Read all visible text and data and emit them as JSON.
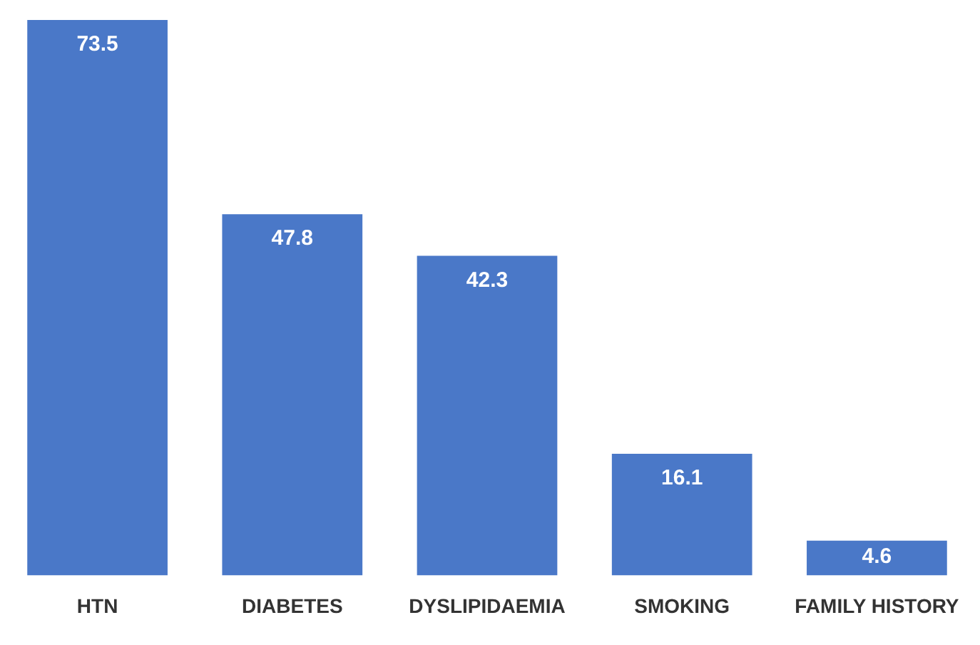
{
  "chart_data": {
    "type": "bar",
    "categories": [
      "HTN",
      "DIABETES",
      "DYSLIPIDAEMIA",
      "SMOKING",
      "FAMILY HISTORY"
    ],
    "values": [
      73.5,
      47.8,
      42.3,
      16.1,
      4.6
    ],
    "color": "#4a78c8",
    "data_labels": true,
    "grid": false,
    "legend": false
  }
}
